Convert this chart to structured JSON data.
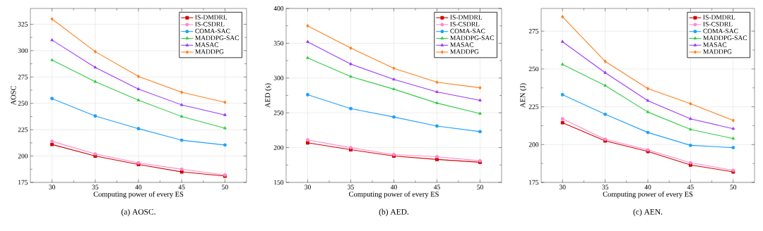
{
  "chart_data": [
    {
      "type": "line",
      "title": "(a)  AOSC.",
      "xlabel": "Computing power of every ES",
      "ylabel": "AOSC",
      "x": [
        30,
        35,
        40,
        45,
        50
      ],
      "xlim": [
        27.5,
        52.5
      ],
      "xticks": [
        30,
        35,
        40,
        45,
        50
      ],
      "ylim": [
        175,
        340
      ],
      "yticks": [
        175,
        200,
        225,
        250,
        275,
        300,
        325
      ],
      "grid": true,
      "legend": "top right",
      "series": [
        {
          "name": "IS-DMDRL",
          "color": "#d00000",
          "marker": "square",
          "values": [
            211,
            200,
            192,
            185,
            181
          ]
        },
        {
          "name": "IS-CSDRL",
          "color": "#ff88c8",
          "marker": "circle",
          "values": [
            214,
            202,
            193.5,
            187.5,
            182
          ]
        },
        {
          "name": "COMA-SAC",
          "color": "#1ea0ff",
          "marker": "circle",
          "values": [
            254.5,
            238,
            226,
            215,
            210.5
          ]
        },
        {
          "name": "MADDPG-SAC",
          "color": "#33cc44",
          "marker": "triangle",
          "values": [
            291,
            270.5,
            253,
            237.5,
            226.5
          ]
        },
        {
          "name": "MASAC",
          "color": "#9a3cff",
          "marker": "triangle",
          "values": [
            310,
            284,
            263.5,
            248.5,
            239
          ]
        },
        {
          "name": "MADDPG",
          "color": "#ff8020",
          "marker": "diamond",
          "values": [
            330,
            299,
            275.5,
            260.5,
            251
          ]
        }
      ]
    },
    {
      "type": "line",
      "title": "(b)  AED.",
      "xlabel": "Computing power of every ES",
      "ylabel": "AED (s)",
      "x": [
        30,
        35,
        40,
        45,
        50
      ],
      "xlim": [
        27.5,
        52.5
      ],
      "xticks": [
        30,
        35,
        40,
        45,
        50
      ],
      "ylim": [
        150,
        400
      ],
      "yticks": [
        150,
        200,
        250,
        300,
        350,
        400
      ],
      "grid": true,
      "legend": "top right",
      "series": [
        {
          "name": "IS-DMDRL",
          "color": "#d00000",
          "marker": "square",
          "values": [
            207,
            197,
            188,
            183,
            179
          ]
        },
        {
          "name": "IS-CSDRL",
          "color": "#ff88c8",
          "marker": "circle",
          "values": [
            211,
            200,
            190,
            187,
            181
          ]
        },
        {
          "name": "COMA-SAC",
          "color": "#1ea0ff",
          "marker": "circle",
          "values": [
            276,
            256,
            244,
            231,
            223
          ]
        },
        {
          "name": "MADDPG-SAC",
          "color": "#33cc44",
          "marker": "triangle",
          "values": [
            329,
            302,
            284,
            264,
            249
          ]
        },
        {
          "name": "MASAC",
          "color": "#9a3cff",
          "marker": "triangle",
          "values": [
            352,
            320,
            298,
            280,
            268
          ]
        },
        {
          "name": "MADDPG",
          "color": "#ff8020",
          "marker": "diamond",
          "values": [
            375,
            343,
            314,
            294,
            286
          ]
        }
      ]
    },
    {
      "type": "line",
      "title": "(c)  AEN.",
      "xlabel": "Computing power of every ES",
      "ylabel": "AEN (J)",
      "x": [
        30,
        35,
        40,
        45,
        50
      ],
      "xlim": [
        27.5,
        52.5
      ],
      "xticks": [
        30,
        35,
        40,
        45,
        50
      ],
      "ylim": [
        175,
        290
      ],
      "yticks": [
        175,
        200,
        225,
        250,
        275
      ],
      "grid": true,
      "legend": "top right",
      "series": [
        {
          "name": "IS-DMDRL",
          "color": "#d00000",
          "marker": "square",
          "values": [
            214.5,
            202.5,
            195.5,
            186.5,
            182
          ]
        },
        {
          "name": "IS-CSDRL",
          "color": "#ff88c8",
          "marker": "circle",
          "values": [
            217,
            203.5,
            196.5,
            188,
            183
          ]
        },
        {
          "name": "COMA-SAC",
          "color": "#1ea0ff",
          "marker": "circle",
          "values": [
            233,
            220,
            208,
            199.5,
            198
          ]
        },
        {
          "name": "MADDPG-SAC",
          "color": "#33cc44",
          "marker": "triangle",
          "values": [
            253,
            239,
            221.5,
            210,
            204
          ]
        },
        {
          "name": "MASAC",
          "color": "#9a3cff",
          "marker": "triangle",
          "values": [
            268,
            247.5,
            229,
            217,
            210.5
          ]
        },
        {
          "name": "MADDPG",
          "color": "#ff8020",
          "marker": "diamond",
          "values": [
            284.5,
            255,
            237,
            227,
            216
          ]
        }
      ]
    }
  ]
}
